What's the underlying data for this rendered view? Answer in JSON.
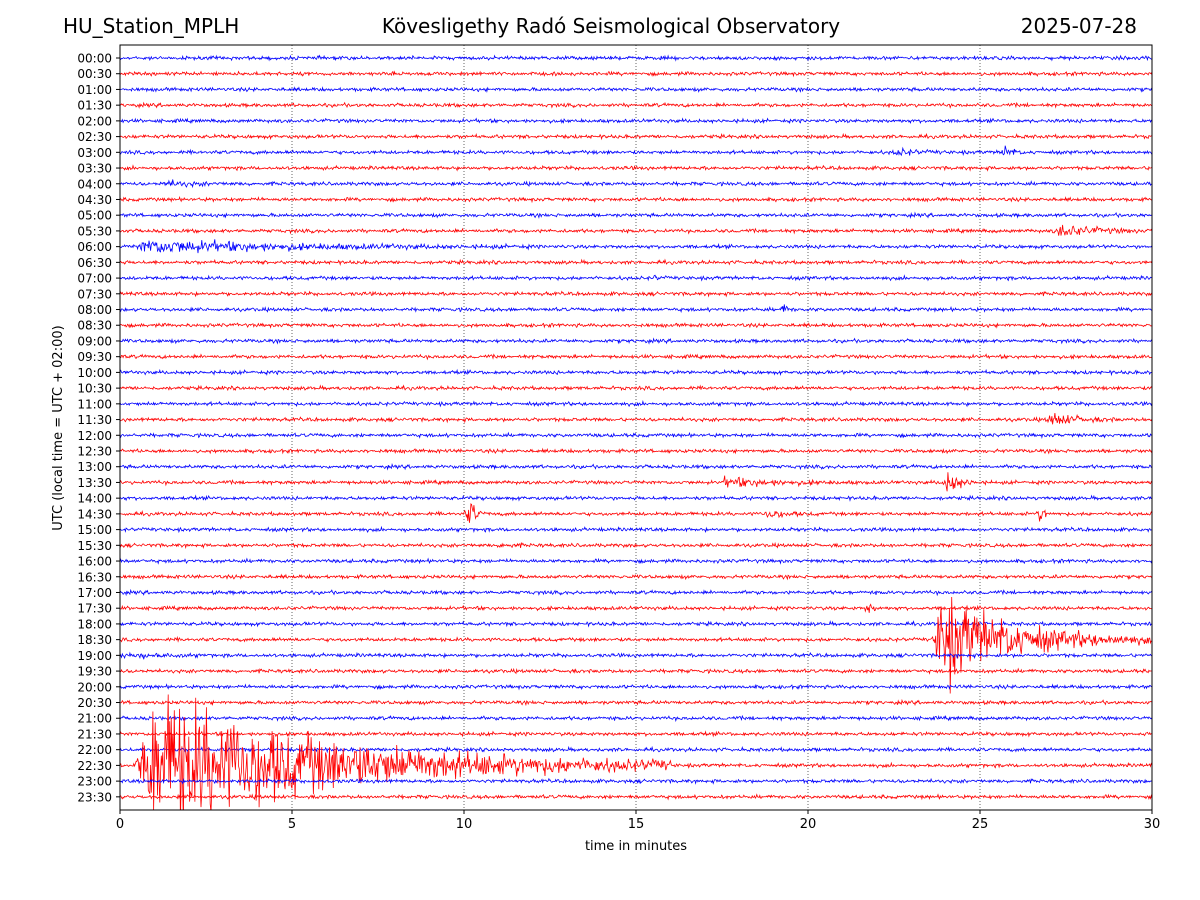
{
  "header": {
    "station": "HU_Station_MPLH",
    "title": "Kövesligethy Radó Seismological Observatory",
    "date": "2025-07-28"
  },
  "chart_data": {
    "type": "line",
    "title": "Kövesligethy Radó Seismological Observatory",
    "xlabel": "time in minutes",
    "ylabel": "UTC (local time = UTC + 02:00)",
    "xlim": [
      0,
      30
    ],
    "xticks": [
      0,
      5,
      10,
      15,
      20,
      25,
      30
    ],
    "grid": "vertical dotted",
    "trace_colors": [
      "#0000ff",
      "#ff0000"
    ],
    "rows": [
      "00:00",
      "00:30",
      "01:00",
      "01:30",
      "02:00",
      "02:30",
      "03:00",
      "03:30",
      "04:00",
      "04:30",
      "05:00",
      "05:30",
      "06:00",
      "06:30",
      "07:00",
      "07:30",
      "08:00",
      "08:30",
      "09:00",
      "09:30",
      "10:00",
      "10:30",
      "11:00",
      "11:30",
      "12:00",
      "12:30",
      "13:00",
      "13:30",
      "14:00",
      "14:30",
      "15:00",
      "15:30",
      "16:00",
      "16:30",
      "17:00",
      "17:30",
      "18:00",
      "18:30",
      "19:00",
      "19:30",
      "20:00",
      "20:30",
      "21:00",
      "21:30",
      "22:00",
      "22:30",
      "23:00",
      "23:30"
    ],
    "events": [
      {
        "row": "03:00",
        "start": 22.4,
        "peak": 22.6,
        "end": 24.0,
        "amp": 0.6
      },
      {
        "row": "03:00",
        "start": 25.6,
        "peak": 25.7,
        "end": 26.3,
        "amp": 1.4
      },
      {
        "row": "04:00",
        "start": 1.2,
        "peak": 1.4,
        "end": 3.5,
        "amp": 0.5
      },
      {
        "row": "05:30",
        "start": 27.1,
        "peak": 27.4,
        "end": 30.0,
        "amp": 1.2
      },
      {
        "row": "06:00",
        "start": 0.4,
        "peak": 0.8,
        "end": 12.0,
        "amp": 1.3
      },
      {
        "row": "07:00",
        "start": 15.4,
        "peak": 15.5,
        "end": 15.9,
        "amp": 0.4
      },
      {
        "row": "08:00",
        "start": 19.2,
        "peak": 19.3,
        "end": 19.6,
        "amp": 1.0
      },
      {
        "row": "11:30",
        "start": 26.9,
        "peak": 27.1,
        "end": 29.0,
        "amp": 1.3
      },
      {
        "row": "13:30",
        "start": 17.5,
        "peak": 17.6,
        "end": 21.5,
        "amp": 0.9
      },
      {
        "row": "13:30",
        "start": 23.9,
        "peak": 24.1,
        "end": 24.9,
        "amp": 2.5
      },
      {
        "row": "14:30",
        "start": 10.0,
        "peak": 10.2,
        "end": 10.6,
        "amp": 3.0
      },
      {
        "row": "14:30",
        "start": 18.7,
        "peak": 18.8,
        "end": 20.3,
        "amp": 0.8
      },
      {
        "row": "14:30",
        "start": 26.6,
        "peak": 26.8,
        "end": 27.1,
        "amp": 1.6
      },
      {
        "row": "15:30",
        "start": 11.0,
        "peak": 11.1,
        "end": 11.8,
        "amp": 0.6
      },
      {
        "row": "17:30",
        "start": 21.6,
        "peak": 21.8,
        "end": 22.1,
        "amp": 1.0
      },
      {
        "row": "18:30",
        "start": 23.6,
        "peak": 23.9,
        "end": 30.0,
        "amp": 9.0
      },
      {
        "row": "19:00",
        "start": 0.0,
        "peak": 0.1,
        "end": 2.5,
        "amp": 0.6
      },
      {
        "row": "22:30",
        "start": 0.4,
        "peak": 1.1,
        "end": 16.0,
        "amp": 14.0
      }
    ]
  }
}
